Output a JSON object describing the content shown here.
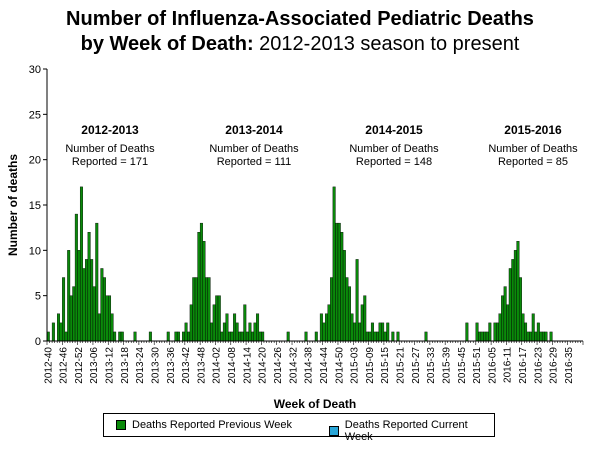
{
  "title_bold": "Number of Influenza-Associated Pediatric Deaths",
  "title_line2_bold": "by Week of Death:",
  "title_line2_regular": "2012-2013 season to present",
  "chart_data": {
    "type": "bar",
    "xlabel": "Week of Death",
    "ylabel": "Number of deaths",
    "ylim": [
      0,
      30
    ],
    "yticks": [
      0,
      5,
      10,
      15,
      20,
      25,
      30
    ],
    "x_tick_labels": [
      "2012-40",
      "2012-46",
      "2012-52",
      "2013-06",
      "2013-12",
      "2013-18",
      "2013-24",
      "2013-30",
      "2013-36",
      "2013-42",
      "2013-48",
      "2014-02",
      "2014-08",
      "2014-14",
      "2014-20",
      "2014-26",
      "2014-32",
      "2014-38",
      "2014-44",
      "2014-50",
      "2015-03",
      "2015-09",
      "2015-15",
      "2015-21",
      "2015-27",
      "2015-33",
      "2015-39",
      "2015-45",
      "2015-51",
      "2016-05",
      "2016-11",
      "2016-17",
      "2016-23",
      "2016-29",
      "2016-35"
    ],
    "series": [
      {
        "name": "Deaths Reported Previous Week",
        "color": "#0a8a0a",
        "values": [
          1,
          0,
          2,
          0,
          3,
          2,
          7,
          1,
          10,
          5,
          6,
          14,
          10,
          17,
          8,
          9,
          12,
          9,
          6,
          13,
          3,
          8,
          7,
          5,
          5,
          3,
          1,
          0,
          1,
          1,
          0,
          0,
          0,
          0,
          1,
          0,
          0,
          0,
          0,
          0,
          1,
          0,
          0,
          0,
          0,
          0,
          0,
          1,
          0,
          0,
          1,
          1,
          0,
          1,
          2,
          1,
          4,
          7,
          7,
          12,
          13,
          11,
          7,
          7,
          2,
          4,
          5,
          5,
          1,
          2,
          3,
          1,
          1,
          3,
          2,
          1,
          1,
          4,
          1,
          2,
          1,
          2,
          3,
          1,
          1,
          0,
          0,
          0,
          0,
          0,
          0,
          0,
          0,
          0,
          1,
          0,
          0,
          0,
          0,
          0,
          0,
          1,
          0,
          0,
          0,
          1,
          0,
          3,
          2,
          3,
          4,
          7,
          17,
          13,
          13,
          12,
          10,
          7,
          6,
          3,
          2,
          9,
          2,
          4,
          5,
          1,
          1,
          2,
          1,
          1,
          2,
          2,
          1,
          2,
          0,
          1,
          0,
          1,
          0,
          0,
          0,
          0,
          0,
          0,
          0,
          0,
          0,
          0,
          1,
          0,
          0,
          0,
          0,
          0,
          0,
          0,
          0,
          0,
          0,
          0,
          0,
          0,
          0,
          0,
          2,
          0,
          0,
          0,
          2,
          1,
          1,
          1,
          1,
          2,
          0,
          2,
          2,
          3,
          5,
          6,
          4,
          8,
          9,
          10,
          11,
          7,
          3,
          2,
          1,
          1,
          3,
          1,
          2,
          1,
          1,
          1,
          0,
          1,
          0,
          0,
          0,
          0,
          0,
          0,
          0,
          0,
          0,
          0,
          0,
          0,
          0,
          0,
          0,
          0,
          0,
          0,
          0,
          0,
          0,
          0,
          0,
          0,
          0
        ]
      },
      {
        "name": "Deaths Reported Current Week",
        "color": "#29a6d8",
        "values": []
      }
    ],
    "seasons": [
      {
        "label": "2012-2013",
        "line1": "Number of Deaths",
        "line2": "Reported = 171"
      },
      {
        "label": "2013-2014",
        "line1": "Number of Deaths",
        "line2": "Reported = 111"
      },
      {
        "label": "2014-2015",
        "line1": "Number of Deaths",
        "line2": "Reported = 148"
      },
      {
        "label": "2015-2016",
        "line1": "Number of Deaths",
        "line2": "Reported = 85"
      }
    ]
  },
  "legend": {
    "previous_label": "Deaths Reported Previous Week",
    "current_label": "Deaths Reported Current Week",
    "previous_color": "#0a8a0a",
    "current_color": "#29a6d8"
  }
}
